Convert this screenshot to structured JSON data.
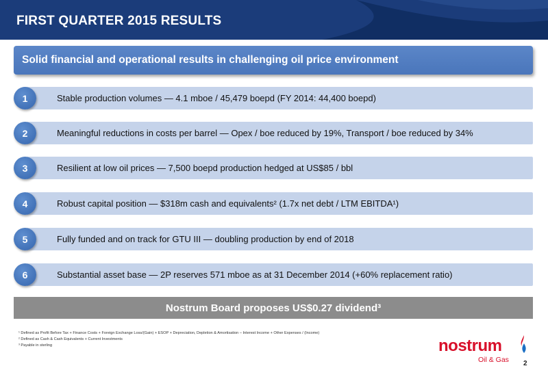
{
  "header": {
    "title": "FIRST QUARTER 2015 RESULTS"
  },
  "banner": {
    "text": "Solid financial and operational results in challenging oil price environment"
  },
  "items": [
    {
      "number": "1",
      "text": "Stable production volumes — 4.1 mboe / 45,479 boepd (FY 2014: 44,400 boepd)"
    },
    {
      "number": "2",
      "text": "Meaningful reductions in costs per barrel — Opex / boe reduced by 19%, Transport / boe reduced by 34%"
    },
    {
      "number": "3",
      "text": "Resilient at low oil prices — 7,500 boepd production hedged at US$85 / bbl"
    },
    {
      "number": "4",
      "text": "Robust capital position — $318m cash and equivalents² (1.7x net debt / LTM EBITDA¹)"
    },
    {
      "number": "5",
      "text": "Fully funded and on track for GTU III — doubling production by end of 2018"
    },
    {
      "number": "6",
      "text": "Substantial asset base — 2P reserves 571 mboe as at 31 December 2014 (+60% replacement ratio)"
    }
  ],
  "dividend": {
    "text": "Nostrum Board proposes US$0.27 dividend³"
  },
  "footnotes": [
    "¹ Defined as Profit Before Tax + Finance Costs + Foreign Exchange Loss/(Gain) + ESOP + Depreciation, Depletion & Amortisation – Interest Income + Other Expenses / (Income)",
    "² Defined as Cash & Cash Equivalents + Current Investments",
    "³ Payable in sterling"
  ],
  "logo": {
    "word": "nostrum",
    "sub": "Oil & Gas"
  },
  "page_number": "2",
  "colors": {
    "header": "#1b3c7a",
    "banner": "#4a76bb",
    "item_bar": "#c5d3ea",
    "circle": "#3565ad",
    "dividend": "#8c8c8c",
    "logo": "#d8102a"
  }
}
